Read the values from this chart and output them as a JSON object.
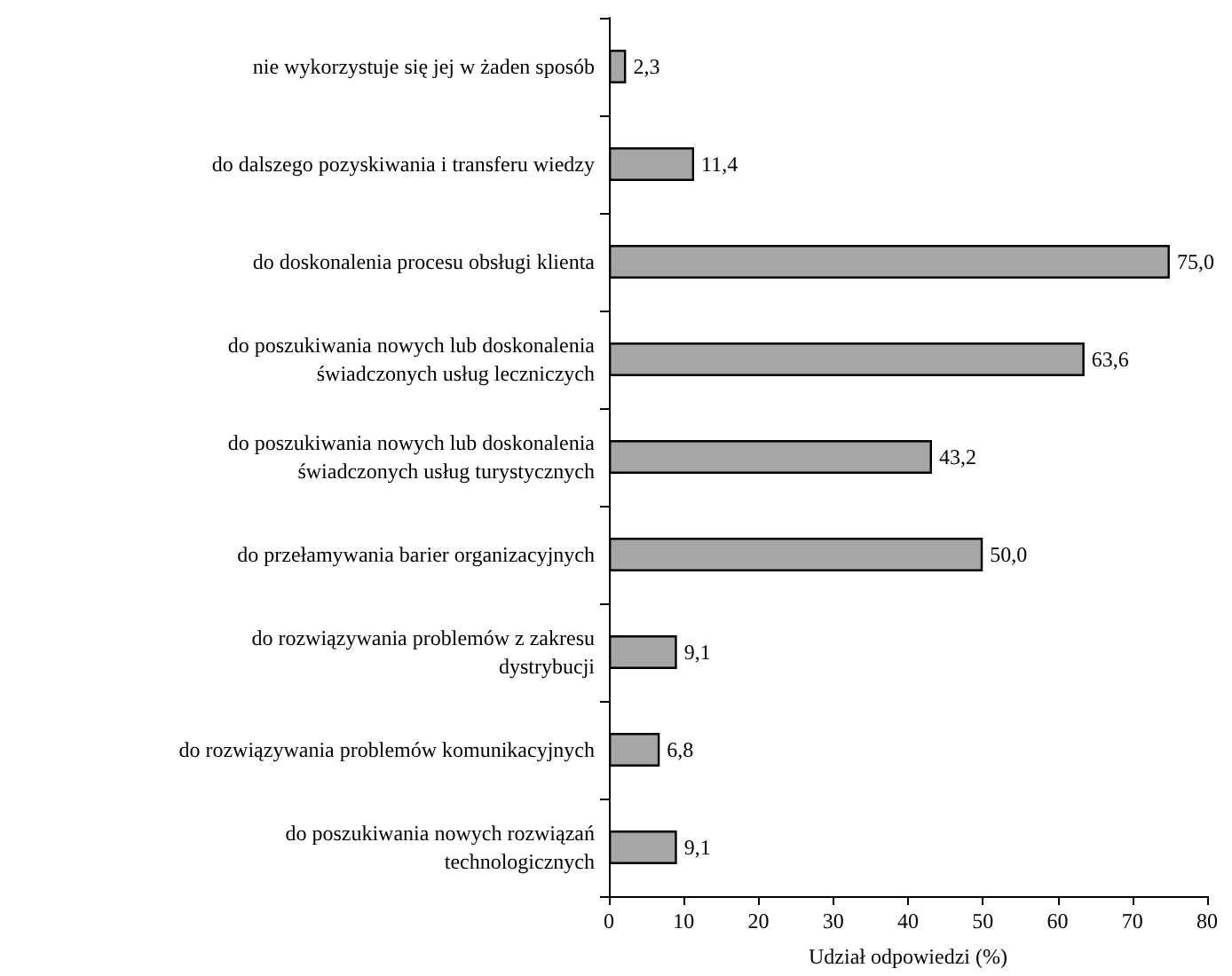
{
  "chart_data": {
    "type": "bar",
    "orientation": "horizontal",
    "xlabel": "Udział odpowiedzi (%)",
    "categories": [
      "nie wykorzystuje się jej w żaden sposób",
      "do dalszego pozyskiwania i transferu wiedzy",
      "do doskonalenia procesu obsługi klienta",
      "do poszukiwania nowych lub doskonalenia\nświadczonych usług leczniczych",
      "do poszukiwania nowych lub doskonalenia\nświadczonych usług turystycznych",
      "do przełamywania barier organizacyjnych",
      "do rozwiązywania problemów z zakresu\ndystrybucji",
      "do rozwiązywania problemów komunikacyjnych",
      "do poszukiwania nowych rozwiązań\ntechnologicznych"
    ],
    "values": [
      2.3,
      11.4,
      75.0,
      63.6,
      43.2,
      50.0,
      9.1,
      6.8,
      9.1
    ],
    "value_labels": [
      "2,3",
      "11,4",
      "75,0",
      "63,6",
      "43,2",
      "50,0",
      "9,1",
      "6,8",
      "9,1"
    ],
    "color": "#a6a6a6",
    "xlim": [
      0,
      80
    ],
    "xticks": [
      0,
      10,
      20,
      30,
      40,
      50,
      60,
      70,
      80
    ]
  }
}
